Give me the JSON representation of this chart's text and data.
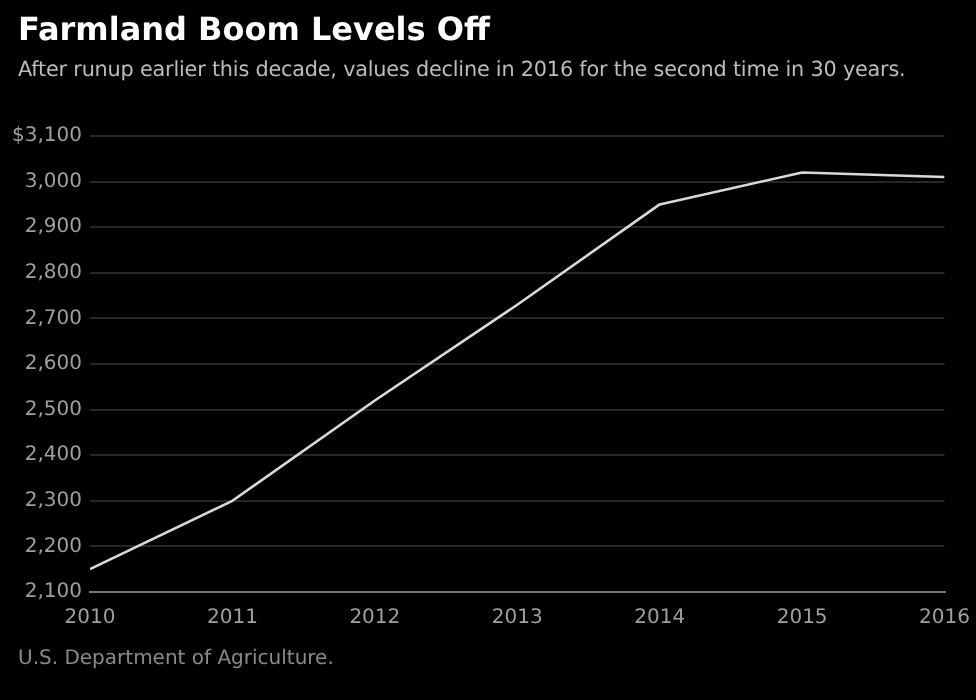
{
  "chart_data": {
    "type": "line",
    "title": "Farmland Boom Levels Off",
    "subtitle": "After runup earlier this decade, values decline in 2016 for the second time in 30 years.",
    "x": [
      2010,
      2011,
      2012,
      2013,
      2014,
      2015,
      2016
    ],
    "series": [
      {
        "color": "#d9d9d9",
        "values": [
          2150,
          2300,
          2520,
          2730,
          2950,
          3020,
          3010
        ]
      }
    ],
    "xlim": [
      2010,
      2016
    ],
    "xticks": [
      2010,
      2011,
      2012,
      2013,
      2014,
      2015,
      2016
    ],
    "ylim": [
      2100,
      3100
    ],
    "yticks": [
      {
        "value": 2100,
        "label": "2,100"
      },
      {
        "value": 2200,
        "label": "2,200"
      },
      {
        "value": 2300,
        "label": "2,300"
      },
      {
        "value": 2400,
        "label": "2,400"
      },
      {
        "value": 2500,
        "label": "2,500"
      },
      {
        "value": 2600,
        "label": "2,600"
      },
      {
        "value": 2700,
        "label": "2,700"
      },
      {
        "value": 2800,
        "label": "2,800"
      },
      {
        "value": 2900,
        "label": "2,900"
      },
      {
        "value": 3000,
        "label": "3,000"
      },
      {
        "value": 3100,
        "label": "$3,100"
      }
    ],
    "grid": "y",
    "legend": false,
    "marker": "none",
    "line_style": "solid",
    "annotations": [
      "U.S. Department of Agriculture."
    ]
  }
}
